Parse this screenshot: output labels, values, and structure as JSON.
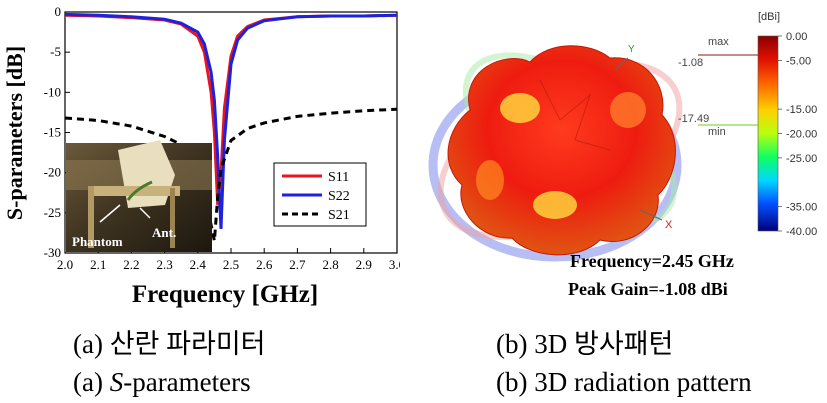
{
  "chart_data": [
    {
      "type": "line",
      "xlabel": "Frequency [GHz]",
      "ylabel": "S-parameters [dB]",
      "xlim": [
        2.0,
        3.0
      ],
      "ylim": [
        -30,
        0
      ],
      "xticks": [
        "2.0",
        "2.1",
        "2.2",
        "2.3",
        "2.4",
        "2.5",
        "2.6",
        "2.7",
        "2.8",
        "2.9",
        "3.0"
      ],
      "yticks": [
        "0",
        "-5",
        "-10",
        "-15",
        "-20",
        "-25",
        "-30"
      ],
      "legend": "bottom-right",
      "series": [
        {
          "name": "S11",
          "color": "#e8141e",
          "style": "solid",
          "x": [
            2.0,
            2.1,
            2.2,
            2.3,
            2.35,
            2.4,
            2.42,
            2.44,
            2.45,
            2.46,
            2.47,
            2.48,
            2.5,
            2.52,
            2.55,
            2.6,
            2.7,
            2.8,
            2.9,
            3.0
          ],
          "y": [
            -0.4,
            -0.5,
            -0.7,
            -1.0,
            -1.5,
            -3.0,
            -5.0,
            -10.0,
            -15.0,
            -24.0,
            -20.0,
            -12.0,
            -5.5,
            -3.0,
            -1.8,
            -1.0,
            -0.6,
            -0.5,
            -0.5,
            -0.4
          ]
        },
        {
          "name": "S22",
          "color": "#1e22dc",
          "style": "solid",
          "x": [
            2.0,
            2.1,
            2.2,
            2.3,
            2.35,
            2.4,
            2.42,
            2.44,
            2.45,
            2.46,
            2.47,
            2.48,
            2.5,
            2.52,
            2.55,
            2.6,
            2.7,
            2.8,
            2.9,
            3.0
          ],
          "y": [
            -0.3,
            -0.4,
            -0.6,
            -0.9,
            -1.4,
            -2.5,
            -4.0,
            -7.5,
            -11.0,
            -18.0,
            -27.0,
            -16.0,
            -6.5,
            -3.5,
            -2.0,
            -1.1,
            -0.6,
            -0.5,
            -0.5,
            -0.4
          ]
        },
        {
          "name": "S21",
          "color": "#000000",
          "style": "dashed",
          "x": [
            2.0,
            2.1,
            2.2,
            2.3,
            2.35,
            2.4,
            2.42,
            2.44,
            2.45,
            2.46,
            2.47,
            2.5,
            2.55,
            2.6,
            2.7,
            2.8,
            2.9,
            3.0
          ],
          "y": [
            -13.2,
            -13.5,
            -14.2,
            -15.5,
            -16.5,
            -19.5,
            -22.0,
            -26.5,
            -28.5,
            -23.0,
            -19.5,
            -16.0,
            -14.5,
            -13.8,
            -13.0,
            -12.6,
            -12.3,
            -12.1
          ]
        }
      ],
      "inset_labels": {
        "phantom": "Phantom",
        "ant": "Ant."
      }
    },
    {
      "type": "heatmap",
      "colorbar_unit": "[dBi]",
      "colorbar_ticks": [
        "0.00",
        "-5.00",
        "-15.00",
        "-20.00",
        "-25.00",
        "-35.00",
        "-40.00"
      ],
      "max_label": "max",
      "max_value": "-1.08",
      "min_label": "min",
      "min_value": "-17.49",
      "axis_labels": {
        "x": "X",
        "y": "Y"
      },
      "annotation_freq": "Frequency=2.45 GHz",
      "annotation_gain": "Peak Gain=-1.08 dBi"
    }
  ],
  "captions": {
    "a_korean": "(a) 산란 파라미터",
    "b_korean": "(b) 3D 방사패턴",
    "a_english_prefix": "(a) ",
    "a_english_italic": "S",
    "a_english_suffix": "-parameters",
    "b_english": "(b) 3D radiation pattern"
  }
}
